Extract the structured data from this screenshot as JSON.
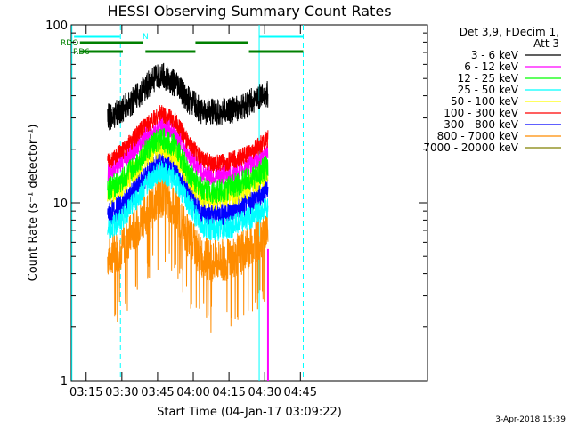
{
  "chart_data": {
    "type": "line",
    "title": "HESSI Observing Summary Count Rates",
    "xlabel": "Start Time (04-Jan-17 03:09:22)",
    "ylabel": "Count Rate (s⁻¹ detector⁻¹)",
    "y_scale": "log",
    "ylim": [
      1,
      100
    ],
    "xlim_min": [
      9.33,
      159
    ],
    "y_ticks": [
      "1",
      "10",
      "100"
    ],
    "x_ticks": [
      {
        "label": "03:15",
        "min": 15.6
      },
      {
        "label": "03:30",
        "min": 30.6
      },
      {
        "label": "03:45",
        "min": 45.6
      },
      {
        "label": "04:00",
        "min": 60.6
      },
      {
        "label": "04:15",
        "min": 75.6
      },
      {
        "label": "04:30",
        "min": 90.6
      },
      {
        "label": "04:45",
        "min": 105.6
      }
    ],
    "legend_header": [
      "Det 3,9, FDecim 1,",
      "Att 3"
    ],
    "time_range_min": [
      24.6,
      92.0
    ],
    "series": [
      {
        "name": "3 - 6 keV",
        "color": "#000000",
        "values": [
          30,
          33,
          38,
          46,
          52,
          47,
          38,
          33,
          32,
          33,
          34,
          38,
          41
        ]
      },
      {
        "name": "6 - 12 keV",
        "color": "#ff00ff",
        "values": [
          15,
          17,
          20,
          24,
          27,
          25,
          19,
          15,
          14,
          14.5,
          15.5,
          17,
          19
        ]
      },
      {
        "name": "12 - 25 keV",
        "color": "#00ff00",
        "values": [
          12,
          13,
          16,
          20,
          23,
          21,
          15,
          12,
          11.5,
          12,
          13,
          14,
          16
        ]
      },
      {
        "name": "25 - 50 keV",
        "color": "#00ffff",
        "values": [
          7,
          8,
          10,
          13,
          15,
          13.5,
          10,
          7.5,
          7,
          7.2,
          7.8,
          8.5,
          9.5
        ]
      },
      {
        "name": "50 - 100 keV",
        "color": "#ffff00",
        "values": [
          11,
          12.5,
          15,
          19,
          21,
          19,
          14,
          11,
          10.5,
          11,
          11.5,
          13,
          15
        ]
      },
      {
        "name": "100 - 300 keV",
        "color": "#ff0000",
        "values": [
          17,
          19,
          23,
          28,
          32,
          29,
          22,
          17.5,
          16.5,
          17,
          18,
          20,
          23
        ]
      },
      {
        "name": "300 - 800 keV",
        "color": "#0000ff",
        "values": [
          8.5,
          9.5,
          11.5,
          14.5,
          17,
          15,
          11.5,
          9,
          8.5,
          8.8,
          9.3,
          10.5,
          12
        ]
      },
      {
        "name": "800 - 7000 keV",
        "color": "#ff8c00",
        "values": [
          5,
          5.5,
          7,
          9,
          11,
          9.5,
          6.5,
          5,
          4.7,
          4.8,
          5.2,
          6,
          7
        ]
      },
      {
        "name": "7000 - 20000 keV",
        "color": "#808000",
        "values": []
      }
    ],
    "flags": [
      {
        "label": "RDO",
        "color": "#008000"
      },
      {
        "label": "RD6",
        "color": "#008000"
      },
      {
        "label": "N",
        "color": "#00ffff"
      }
    ]
  },
  "footer_date": "3-Apr-2018 15:39"
}
